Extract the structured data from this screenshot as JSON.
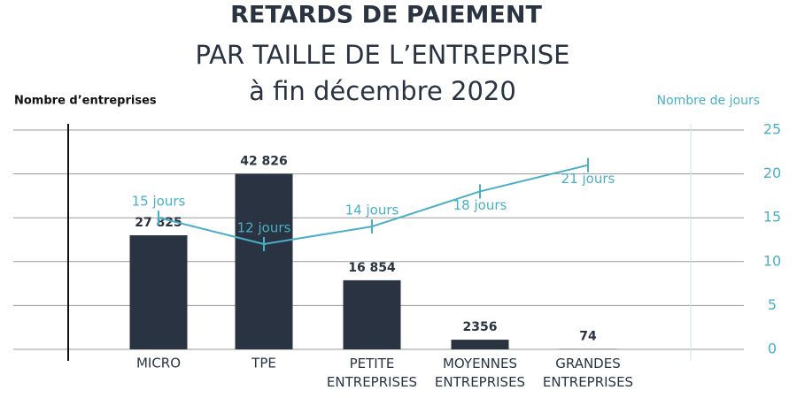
{
  "chart_data": {
    "type": "bar+line",
    "title": "RETARDS DE PAIEMENT",
    "subtitle": [
      "PAR TAILLE DE L’ENTREPRISE",
      "à fin décembre 2020"
    ],
    "y_label": "Nombre d’entreprises",
    "y2_label": "Nombre de jours",
    "categories": [
      "MICRO",
      "TPE",
      "PETITE ENTREPRISES",
      "MOYENNES ENTREPRISES",
      "GRANDES ENTREPRISES"
    ],
    "series": [
      {
        "type": "bar",
        "color": "#2a3342",
        "values": [
          27825,
          42826,
          16854,
          2356,
          74
        ],
        "value_labels": [
          "27 825",
          "42 826",
          "16 854",
          "2356",
          "74"
        ]
      },
      {
        "type": "line",
        "axis": "y2",
        "color": "#4aafc6",
        "values": [
          15,
          12,
          14,
          18,
          21
        ],
        "value_labels": [
          "15 jours",
          "12 jours",
          "14  jours",
          "18 jours",
          "21 jours"
        ]
      }
    ],
    "ylim": [
      0,
      53500
    ],
    "y2lim": [
      0,
      25
    ],
    "y2ticks": [
      0,
      5,
      10,
      15,
      20,
      25
    ],
    "grid": true
  }
}
